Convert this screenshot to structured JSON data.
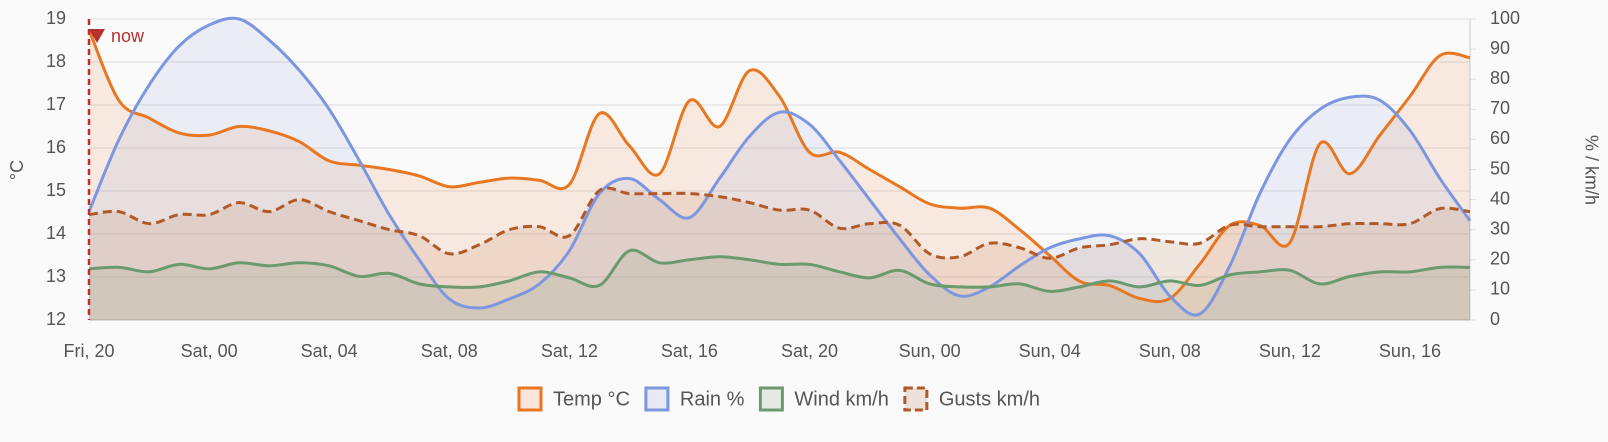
{
  "chart_data": {
    "type": "line",
    "categories": [
      "Fri, 20",
      null,
      null,
      null,
      "Sat, 00",
      null,
      null,
      null,
      "Sat, 04",
      null,
      null,
      null,
      "Sat, 08",
      null,
      null,
      null,
      "Sat, 12",
      null,
      null,
      null,
      "Sat, 16",
      null,
      null,
      null,
      "Sat, 20",
      null,
      null,
      null,
      "Sun, 00",
      null,
      null,
      null,
      "Sun, 04",
      null,
      null,
      null,
      "Sun, 08",
      null,
      null,
      null,
      "Sun, 12",
      null,
      null,
      null,
      "Sun, 16",
      null,
      null
    ],
    "ylabel": "°C",
    "y2label": "% / km/h",
    "ylim": [
      12,
      19
    ],
    "yticks": [
      12,
      13,
      14,
      15,
      16,
      17,
      18,
      19
    ],
    "y2lim": [
      0,
      100
    ],
    "y2ticks": [
      0,
      10,
      20,
      30,
      40,
      50,
      60,
      70,
      80,
      90,
      100
    ],
    "grid": true,
    "legend": "bottom",
    "annotation": {
      "text": "now",
      "at": "Fri, 20",
      "color": "#b8312f"
    },
    "series": [
      {
        "name": "Temp °C",
        "color": "#e87722",
        "line_style": "solid",
        "values": [
          18.75,
          17.1,
          16.7,
          16.35,
          16.3,
          16.5,
          16.4,
          16.15,
          15.7,
          15.6,
          15.5,
          15.35,
          15.1,
          15.2,
          15.3,
          15.25,
          15.15,
          16.8,
          16.05,
          15.4,
          17.1,
          16.5,
          17.8,
          17.2,
          15.9,
          15.9,
          15.5,
          15.1,
          14.7,
          14.6,
          14.6,
          14.1,
          13.5,
          12.9,
          12.8,
          12.5,
          12.5,
          13.3,
          14.2,
          14.2,
          13.8,
          16.1,
          15.4,
          16.3,
          17.2,
          18.15,
          18.1
        ]
      },
      {
        "name": "Rain %",
        "color": "#7d96e0",
        "line_style": "solid",
        "axis": "y2",
        "values": [
          36,
          60,
          78,
          91,
          98,
          100,
          93,
          83,
          70,
          53,
          35,
          20,
          7,
          4,
          7,
          12,
          23,
          42,
          47,
          40,
          34,
          47,
          61,
          69,
          65,
          53,
          40,
          27,
          15,
          8,
          11,
          18,
          24,
          27,
          28,
          22,
          8,
          2,
          18,
          42,
          60,
          70,
          74,
          73,
          63,
          47,
          33
        ]
      },
      {
        "name": "Wind km/h",
        "color": "#6a9a6e",
        "line_style": "solid",
        "axis": "y2",
        "values": [
          17,
          17.5,
          16,
          18.5,
          17,
          19,
          18,
          19,
          18,
          14.5,
          15.5,
          12,
          11,
          11,
          13,
          16,
          14,
          11.5,
          23,
          19,
          20,
          21,
          20,
          18.5,
          18.5,
          16,
          14,
          16.5,
          12,
          11,
          11,
          12,
          9.5,
          11,
          13,
          11,
          13,
          11.5,
          15,
          16,
          16.5,
          12,
          14.5,
          16,
          16,
          17.5,
          17.5
        ]
      },
      {
        "name": "Gusts km/h",
        "color": "#b05a2a",
        "line_style": "dashed",
        "axis": "y2",
        "values": [
          35,
          36,
          32,
          35,
          35,
          39,
          36,
          40,
          36,
          33,
          30,
          28,
          22,
          25,
          30,
          31,
          28,
          43,
          42,
          42,
          42,
          41,
          39,
          36.5,
          36.5,
          30.5,
          32,
          31.5,
          22,
          21,
          25.5,
          24,
          20.5,
          24,
          25,
          27,
          26,
          25.5,
          31.5,
          31,
          31,
          31,
          32,
          32,
          32,
          37,
          36
        ]
      }
    ]
  }
}
